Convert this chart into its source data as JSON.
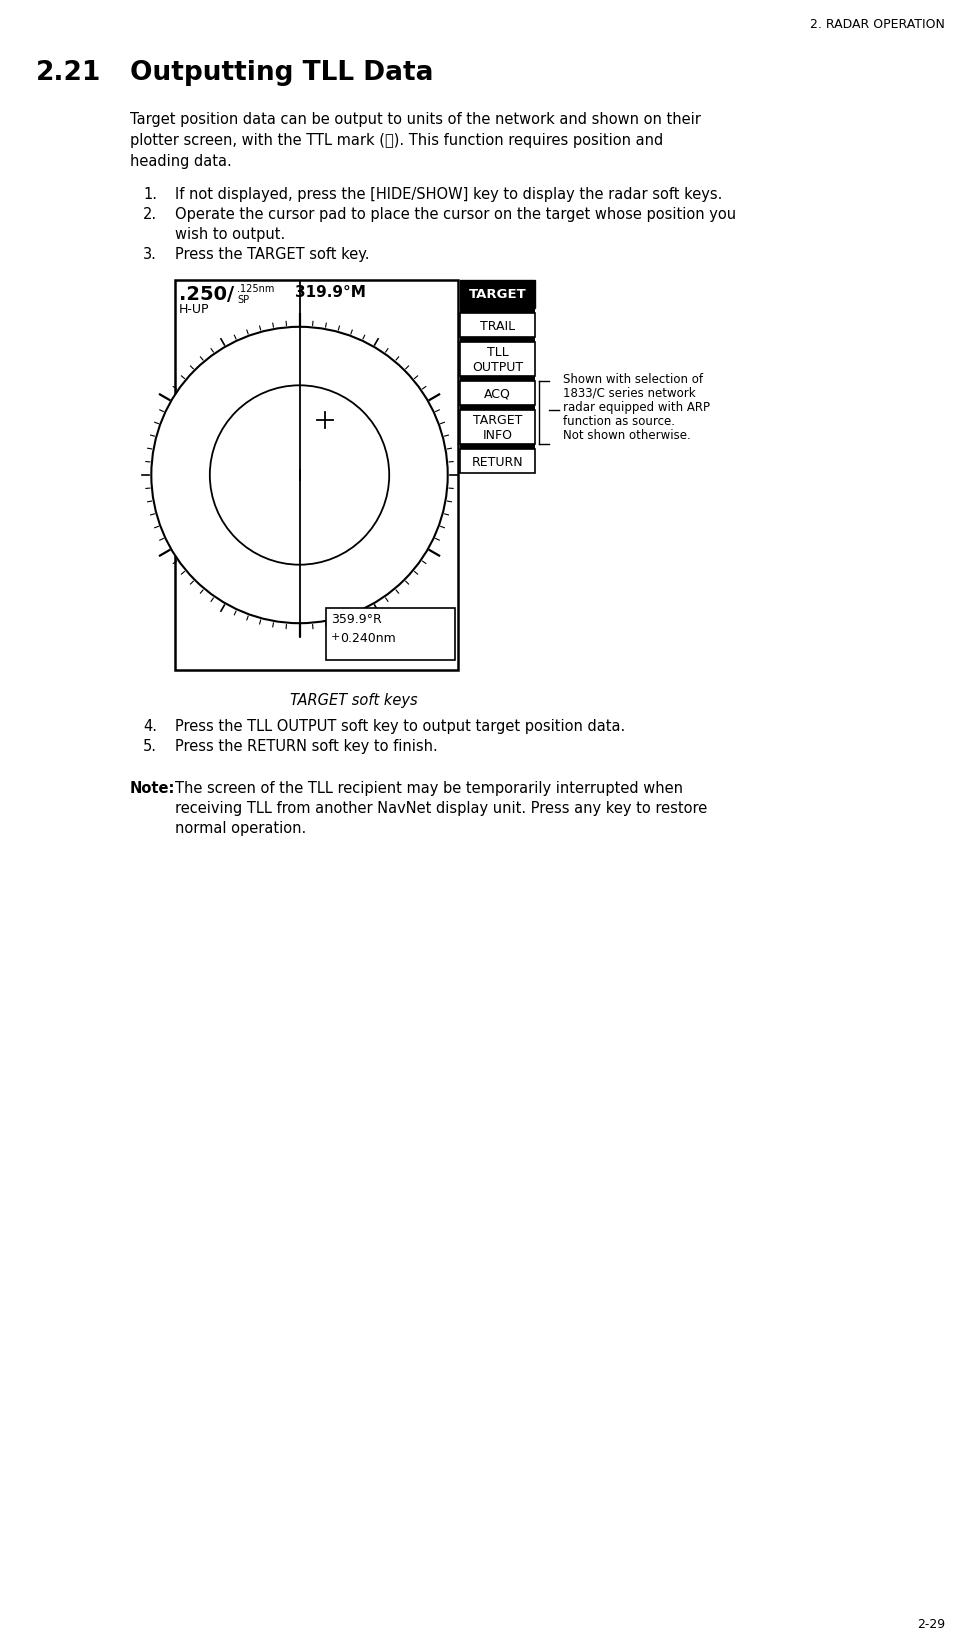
{
  "page_header": "2. RADAR OPERATION",
  "section_num": "2.21",
  "section_title": "Outputting TLL Data",
  "body_lines": [
    "Target position data can be output to units of the network and shown on their",
    "plotter screen, with the TTL mark (Ⓧ). This function requires position and",
    "heading data."
  ],
  "step1": "If not displayed, press the [HIDE/SHOW] key to display the radar soft keys.",
  "step2a": "Operate the cursor pad to place the cursor on the target whose position you",
  "step2b": "wish to output.",
  "step3": "Press the TARGET soft key.",
  "step4": "Press the TLL OUTPUT soft key to output target position data.",
  "step5": "Press the RETURN soft key to finish.",
  "note_bold": "Note:",
  "note_line1": "The screen of the TLL recipient may be temporarily interrupted when",
  "note_line2": "receiving TLL from another NavNet display unit. Press any key to restore",
  "note_line3": "normal operation.",
  "caption": "TARGET soft keys",
  "radar_big": ".250/",
  "radar_small1": ".125nm",
  "radar_small2": "SP",
  "radar_hup": "H-UP",
  "radar_heading": "319.9°M",
  "radar_bot1": "359.9°R",
  "radar_bot2": "0.240nm",
  "annotation_lines": [
    "Shown with selection of",
    "1833/C series network",
    "radar equipped with ARP",
    "function as source.",
    "Not shown otherwise."
  ],
  "page_num": "2-29",
  "bg": "#ffffff",
  "fg": "#000000"
}
